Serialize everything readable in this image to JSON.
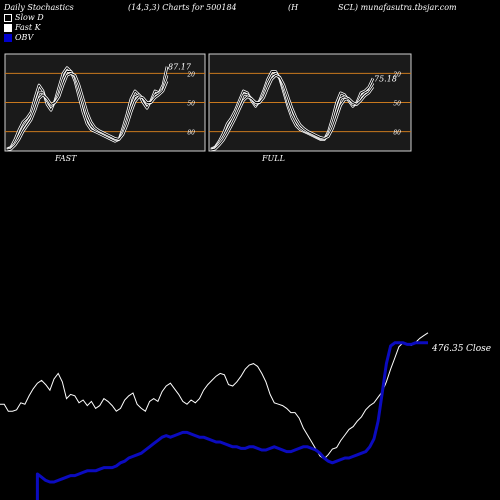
{
  "header": {
    "left": "Daily Stochastics",
    "center": "(14,3,3) Charts for 500184",
    "right1": "(H",
    "right2": "SCL) munafasutra.tbsjar.com"
  },
  "legend": [
    {
      "label": "Slow  D",
      "color": "#000000"
    },
    {
      "label": "Fast K",
      "color": "#ffffff"
    },
    {
      "label": "OBV",
      "color": "#0000cc"
    }
  ],
  "colors": {
    "background": "#000000",
    "panel": "#1a1a1a",
    "level_line": "#c8781e",
    "line": "#ffffff",
    "obv": "#0b0bbf"
  },
  "chart_data": [
    {
      "type": "line",
      "name_label": "FAST",
      "ylim": [
        0,
        100
      ],
      "levels": [
        20,
        50,
        80
      ],
      "tick_labels": [
        "80",
        "50",
        "20"
      ],
      "last_value_label": "87.17",
      "series": [
        {
          "values": [
            2,
            4,
            12,
            22,
            30,
            34,
            40,
            55,
            68,
            62,
            48,
            42,
            52,
            66,
            80,
            86,
            82,
            72,
            56,
            40,
            28,
            22,
            20,
            18,
            16,
            14,
            12,
            10,
            12,
            24,
            38,
            54,
            62,
            58,
            50,
            44,
            52,
            62,
            60,
            68,
            87
          ]
        },
        {
          "values": [
            2,
            3,
            8,
            16,
            24,
            30,
            36,
            48,
            60,
            60,
            52,
            46,
            50,
            60,
            74,
            82,
            82,
            76,
            62,
            48,
            34,
            26,
            22,
            20,
            18,
            16,
            14,
            12,
            12,
            20,
            32,
            46,
            56,
            58,
            54,
            48,
            50,
            58,
            60,
            64,
            78
          ]
        },
        {
          "values": [
            1,
            2,
            6,
            12,
            20,
            26,
            32,
            42,
            54,
            58,
            54,
            48,
            50,
            56,
            68,
            78,
            80,
            78,
            68,
            54,
            40,
            30,
            24,
            21,
            19,
            17,
            15,
            13,
            12,
            17,
            27,
            40,
            51,
            56,
            55,
            50,
            50,
            55,
            58,
            62,
            72
          ]
        }
      ]
    },
    {
      "type": "line",
      "name_label": "FULL",
      "ylim": [
        0,
        100
      ],
      "levels": [
        20,
        50,
        80
      ],
      "tick_labels": [
        "80",
        "50",
        "20"
      ],
      "last_value_label": "75.18",
      "series": [
        {
          "values": [
            2,
            4,
            10,
            18,
            28,
            34,
            42,
            52,
            62,
            60,
            52,
            46,
            52,
            62,
            74,
            82,
            82,
            74,
            60,
            46,
            34,
            26,
            22,
            20,
            18,
            16,
            14,
            12,
            12,
            20,
            34,
            50,
            60,
            58,
            52,
            46,
            50,
            60,
            62,
            66,
            75
          ]
        },
        {
          "values": [
            1,
            3,
            8,
            14,
            22,
            30,
            38,
            48,
            58,
            58,
            54,
            48,
            50,
            58,
            70,
            78,
            80,
            76,
            64,
            50,
            38,
            30,
            24,
            21,
            19,
            17,
            15,
            13,
            12,
            17,
            28,
            42,
            54,
            56,
            54,
            48,
            48,
            56,
            60,
            62,
            70
          ]
        },
        {
          "values": [
            1,
            2,
            6,
            11,
            18,
            26,
            34,
            43,
            52,
            56,
            54,
            50,
            50,
            55,
            65,
            74,
            78,
            76,
            68,
            56,
            44,
            34,
            27,
            23,
            20,
            18,
            16,
            14,
            13,
            15,
            23,
            35,
            47,
            53,
            54,
            50,
            48,
            52,
            57,
            60,
            66
          ]
        }
      ]
    },
    {
      "type": "line",
      "last_value_label": "476.35",
      "close_label": "Close",
      "series": [
        {
          "name": "Close",
          "values": [
            374,
            374,
            364,
            364,
            366,
            376,
            374,
            386,
            396,
            404,
            408,
            402,
            394,
            410,
            418,
            406,
            382,
            388,
            386,
            376,
            380,
            372,
            378,
            368,
            372,
            382,
            378,
            372,
            364,
            368,
            380,
            386,
            390,
            374,
            368,
            364,
            378,
            382,
            378,
            392,
            400,
            404,
            396,
            388,
            378,
            374,
            380,
            376,
            382,
            394,
            402,
            408,
            414,
            418,
            416,
            402,
            400,
            406,
            414,
            424,
            430,
            432,
            428,
            418,
            406,
            388,
            376,
            374,
            372,
            368,
            362,
            362,
            354,
            340,
            330,
            320,
            310,
            300,
            296,
            302,
            310,
            312,
            322,
            330,
            338,
            342,
            350,
            356,
            366,
            372,
            376,
            384,
            392,
            406,
            424,
            440,
            456,
            462,
            460,
            458,
            462,
            468,
            472,
            476
          ]
        },
        {
          "name": "OBV",
          "values": [
            0,
            0,
            0,
            0,
            0,
            0,
            0,
            0,
            0,
            180,
            176,
            172,
            170,
            170,
            172,
            174,
            176,
            178,
            178,
            180,
            182,
            184,
            184,
            184,
            186,
            188,
            188,
            188,
            190,
            194,
            196,
            200,
            202,
            204,
            206,
            210,
            214,
            218,
            222,
            226,
            228,
            226,
            228,
            230,
            232,
            232,
            230,
            228,
            226,
            226,
            224,
            222,
            220,
            220,
            218,
            216,
            214,
            214,
            212,
            212,
            214,
            214,
            212,
            210,
            210,
            212,
            214,
            212,
            210,
            208,
            208,
            210,
            212,
            214,
            214,
            212,
            210,
            206,
            200,
            196,
            194,
            196,
            198,
            200,
            200,
            202,
            204,
            206,
            208,
            214,
            224,
            246,
            282,
            318,
            340,
            344,
            344,
            344,
            342,
            342,
            344,
            344,
            344,
            344
          ]
        }
      ]
    }
  ]
}
